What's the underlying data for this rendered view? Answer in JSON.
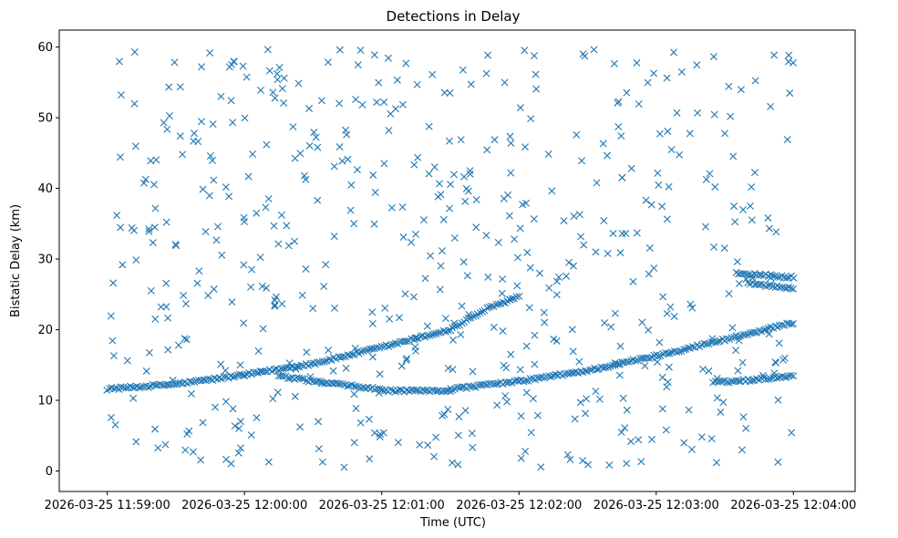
{
  "chart_data": {
    "type": "scatter",
    "title": "Detections in Delay",
    "xlabel": "Time (UTC)",
    "ylabel": "Bistatic Delay (km)",
    "marker": "x",
    "color": "#1f77b4",
    "x_unit": "seconds since 2026-03-25 11:59:00",
    "xlim": [
      -21,
      327
    ],
    "ylim": [
      -2.9,
      62.4
    ],
    "x_ticks": [
      {
        "value": 0,
        "label": "2026-03-25 11:59:00"
      },
      {
        "value": 60,
        "label": "2026-03-25 12:00:00"
      },
      {
        "value": 120,
        "label": "2026-03-25 12:01:00"
      },
      {
        "value": 180,
        "label": "2026-03-25 12:02:00"
      },
      {
        "value": 240,
        "label": "2026-03-25 12:03:00"
      },
      {
        "value": 300,
        "label": "2026-03-25 12:04:00"
      }
    ],
    "y_ticks": [
      {
        "value": 0,
        "label": "0"
      },
      {
        "value": 10,
        "label": "10"
      },
      {
        "value": 20,
        "label": "20"
      },
      {
        "value": 30,
        "label": "30"
      },
      {
        "value": 40,
        "label": "40"
      },
      {
        "value": 50,
        "label": "50"
      },
      {
        "value": 60,
        "label": "60"
      }
    ],
    "tracks": [
      {
        "name": "track-rising-1",
        "t_start": 0,
        "t_end": 180,
        "step": 1,
        "y_points": [
          [
            0,
            11.6
          ],
          [
            30,
            12.3
          ],
          [
            60,
            13.6
          ],
          [
            90,
            15.2
          ],
          [
            120,
            17.5
          ],
          [
            150,
            20.0
          ],
          [
            165,
            22.8
          ],
          [
            180,
            24.7
          ]
        ]
      },
      {
        "name": "track-descending",
        "t_start": 75,
        "t_end": 120,
        "step": 1,
        "y_points": [
          [
            75,
            13.4
          ],
          [
            90,
            12.7
          ],
          [
            105,
            12.1
          ],
          [
            120,
            11.5
          ]
        ]
      },
      {
        "name": "track-flat-1",
        "t_start": 120,
        "t_end": 150,
        "step": 1,
        "y_points": [
          [
            120,
            11.4
          ],
          [
            135,
            11.3
          ],
          [
            150,
            11.4
          ]
        ]
      },
      {
        "name": "track-rising-2",
        "t_start": 150,
        "t_end": 300,
        "step": 1,
        "y_points": [
          [
            150,
            11.6
          ],
          [
            180,
            12.7
          ],
          [
            210,
            14.2
          ],
          [
            240,
            16.3
          ],
          [
            270,
            18.6
          ],
          [
            300,
            21.0
          ]
        ]
      },
      {
        "name": "track-right-28",
        "t_start": 275,
        "t_end": 300,
        "step": 1,
        "y_points": [
          [
            275,
            28.0
          ],
          [
            300,
            27.4
          ]
        ]
      },
      {
        "name": "track-right-26",
        "t_start": 280,
        "t_end": 300,
        "step": 1,
        "y_points": [
          [
            280,
            26.6
          ],
          [
            300,
            25.8
          ]
        ]
      },
      {
        "name": "track-right-13",
        "t_start": 265,
        "t_end": 300,
        "step": 1,
        "y_points": [
          [
            265,
            12.5
          ],
          [
            282,
            12.9
          ],
          [
            300,
            13.5
          ]
        ]
      }
    ],
    "scatter_noise": {
      "count": 560,
      "x_range": [
        0,
        300
      ],
      "y_range": [
        0.5,
        59.7
      ],
      "seed": 12345
    },
    "legend": "none",
    "grid": false
  }
}
